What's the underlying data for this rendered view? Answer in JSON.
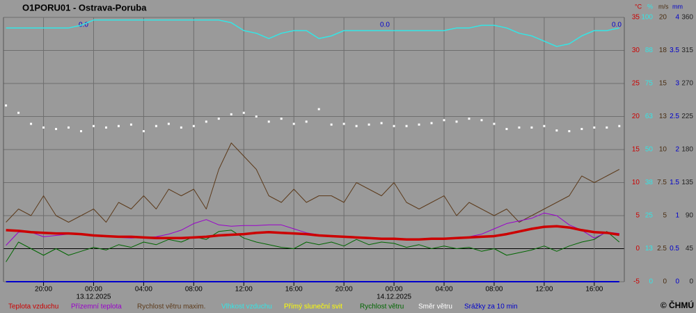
{
  "chart_data": {
    "type": "line",
    "title": "O1PORU01 - Ostrava-Poruba",
    "copyright": "© ČHMÚ",
    "annotations": [
      "0.0",
      "0.0",
      "0.0"
    ],
    "grid": true,
    "xlim": [
      16.8,
      66.4
    ],
    "xticks": [
      {
        "value": 20,
        "label": "20:00"
      },
      {
        "value": 24,
        "label": "00:00"
      },
      {
        "value": 28,
        "label": "04:00"
      },
      {
        "value": 32,
        "label": "08:00"
      },
      {
        "value": 36,
        "label": "12:00"
      },
      {
        "value": 40,
        "label": "16:00"
      },
      {
        "value": 44,
        "label": "20:00"
      },
      {
        "value": 48,
        "label": "00:00"
      },
      {
        "value": 52,
        "label": "04:00"
      },
      {
        "value": 56,
        "label": "08:00"
      },
      {
        "value": 60,
        "label": "12:00"
      },
      {
        "value": 64,
        "label": "16:00"
      }
    ],
    "x_date_labels": [
      {
        "value": 24,
        "label": "13.12.2025"
      },
      {
        "value": 48,
        "label": "14.12.2025"
      }
    ],
    "axes": [
      {
        "name": "°C",
        "color": "#cc0000",
        "lim": [
          -5,
          35
        ],
        "ticks": [
          -5,
          0,
          5,
          10,
          15,
          20,
          25,
          30,
          35
        ]
      },
      {
        "name": "%",
        "color": "#33e6e6",
        "lim": [
          0,
          100
        ],
        "ticks": [
          0,
          {
            "value": 12.5,
            "label": "13"
          },
          25,
          {
            "value": 37.5,
            "label": "38"
          },
          50,
          {
            "value": 62.5,
            "label": "63"
          },
          75,
          {
            "value": 87.5,
            "label": "88"
          },
          100
        ]
      },
      {
        "name": "m/s",
        "color": "#4a2e12",
        "lim": [
          0,
          20
        ],
        "ticks": [
          0,
          2.5,
          5,
          7.5,
          10,
          {
            "value": 12.5,
            "label": "13"
          },
          15,
          {
            "value": 17.5,
            "label": "18"
          },
          20
        ]
      },
      {
        "name": "mm",
        "color": "#0000cc",
        "lim": [
          0,
          4
        ],
        "ticks": [
          0,
          0.5,
          1,
          1.5,
          2,
          2.5,
          3,
          3.5,
          4
        ]
      },
      {
        "color": "#222222",
        "lim": [
          0,
          360
        ],
        "ticks": [
          0,
          45,
          90,
          135,
          180,
          225,
          270,
          315,
          360
        ]
      }
    ],
    "x": [
      17,
      18,
      19,
      20,
      21,
      22,
      23,
      24,
      25,
      26,
      27,
      28,
      29,
      30,
      31,
      32,
      33,
      34,
      35,
      36,
      37,
      38,
      39,
      40,
      41,
      42,
      43,
      44,
      45,
      46,
      47,
      48,
      49,
      50,
      51,
      52,
      53,
      54,
      55,
      56,
      57,
      58,
      59,
      60,
      61,
      62,
      63,
      64,
      65,
      66
    ],
    "series": [
      {
        "name": "Teplota vzduchu",
        "color": "#cc0000",
        "axis": 0,
        "kind": "line",
        "width": 3.5,
        "values": [
          2.8,
          2.7,
          2.5,
          2.4,
          2.3,
          2.3,
          2.2,
          2.0,
          1.9,
          1.8,
          1.8,
          1.7,
          1.6,
          1.6,
          1.6,
          1.7,
          1.8,
          2.0,
          2.1,
          2.2,
          2.4,
          2.5,
          2.4,
          2.3,
          2.2,
          2.0,
          1.9,
          1.8,
          1.7,
          1.6,
          1.5,
          1.5,
          1.4,
          1.4,
          1.5,
          1.5,
          1.6,
          1.7,
          1.8,
          1.9,
          2.2,
          2.6,
          3.0,
          3.3,
          3.4,
          3.2,
          2.8,
          2.5,
          2.4,
          2.1
        ]
      },
      {
        "name": "Přízemní teplota",
        "color": "#9900cc",
        "axis": 0,
        "kind": "line",
        "width": 1,
        "values": [
          0.5,
          2.5,
          2.5,
          1.8,
          2.0,
          2.2,
          2.1,
          1.9,
          1.8,
          1.7,
          1.6,
          1.7,
          1.8,
          2.2,
          2.8,
          3.8,
          4.4,
          3.6,
          3.4,
          3.5,
          3.5,
          3.6,
          3.6,
          3.0,
          2.4,
          2.1,
          1.9,
          1.8,
          1.7,
          1.6,
          1.5,
          1.5,
          1.4,
          1.4,
          1.4,
          1.5,
          1.6,
          1.8,
          2.2,
          3.0,
          3.8,
          4.2,
          4.6,
          5.4,
          5.0,
          3.6,
          2.8,
          1.6,
          2.5,
          2.3
        ]
      },
      {
        "name": "Rychlost větru maxim.",
        "color": "#5c3a1a",
        "axis": 2,
        "kind": "line",
        "width": 1,
        "values": [
          4.5,
          5.5,
          5.0,
          6.5,
          5.0,
          4.5,
          5.0,
          5.5,
          4.5,
          6.0,
          5.5,
          6.5,
          5.5,
          7.0,
          6.5,
          7.0,
          5.5,
          8.5,
          10.5,
          9.5,
          8.5,
          6.5,
          6.0,
          7.0,
          6.0,
          6.5,
          6.5,
          6.0,
          7.5,
          7.0,
          6.5,
          7.5,
          6.0,
          5.5,
          6.0,
          6.5,
          5.0,
          6.0,
          5.5,
          5.0,
          5.5,
          4.5,
          5.0,
          5.5,
          6.0,
          6.5,
          8.0,
          7.5,
          8.0,
          8.5
        ]
      },
      {
        "name": "Vlhkost vzduchu",
        "color": "#33e6e6",
        "axis": 1,
        "kind": "line",
        "width": 1.5,
        "values": [
          96,
          96,
          96,
          96,
          96,
          96,
          97,
          99,
          99,
          99,
          99,
          99,
          99,
          99,
          99,
          99,
          99,
          99,
          98,
          95,
          94,
          92,
          94,
          95,
          95,
          92,
          93,
          95,
          95,
          95,
          95,
          95,
          95,
          95,
          95,
          95,
          96,
          96,
          97,
          97,
          96,
          94,
          93,
          91,
          89,
          90,
          93,
          95,
          95,
          96
        ]
      },
      {
        "name": "Přímý sluneční svit",
        "color": "#ffff00",
        "kind": "none"
      },
      {
        "name": "Rychlost větru",
        "color": "#006600",
        "axis": 2,
        "kind": "line",
        "width": 1,
        "values": [
          1.5,
          3.0,
          2.5,
          2.0,
          2.5,
          2.0,
          2.3,
          2.6,
          2.4,
          2.8,
          2.6,
          3.0,
          2.8,
          3.2,
          3.0,
          3.4,
          3.2,
          3.8,
          3.9,
          3.3,
          3.0,
          2.8,
          2.6,
          2.5,
          3.0,
          2.8,
          3.0,
          2.7,
          3.2,
          2.8,
          3.0,
          2.9,
          2.6,
          2.8,
          2.5,
          2.7,
          2.5,
          2.6,
          2.3,
          2.5,
          2.0,
          2.2,
          2.4,
          2.7,
          2.3,
          2.7,
          3.0,
          3.2,
          3.8,
          3.0
        ]
      },
      {
        "name": "Směr větru",
        "color": "#ffffff",
        "axis": 4,
        "kind": "scatter",
        "values": [
          240,
          230,
          215,
          210,
          208,
          210,
          205,
          212,
          210,
          212,
          214,
          205,
          212,
          215,
          210,
          212,
          218,
          222,
          228,
          230,
          225,
          218,
          222,
          215,
          218,
          235,
          214,
          215,
          212,
          214,
          216,
          212,
          212,
          214,
          216,
          220,
          218,
          222,
          220,
          215,
          208,
          210,
          210,
          212,
          206,
          205,
          208,
          210,
          210,
          212
        ]
      },
      {
        "name": "Srážky za 10 min",
        "color": "#0000cc",
        "axis": 3,
        "kind": "line",
        "width": 2,
        "values": [
          0,
          0,
          0,
          0,
          0,
          0,
          0,
          0,
          0,
          0,
          0,
          0,
          0,
          0,
          0,
          0,
          0,
          0,
          0,
          0,
          0,
          0,
          0,
          0,
          0,
          0,
          0,
          0,
          0,
          0,
          0,
          0,
          0,
          0,
          0,
          0,
          0,
          0,
          0,
          0,
          0,
          0,
          0,
          0,
          0,
          0,
          0,
          0,
          0,
          0
        ]
      }
    ]
  }
}
